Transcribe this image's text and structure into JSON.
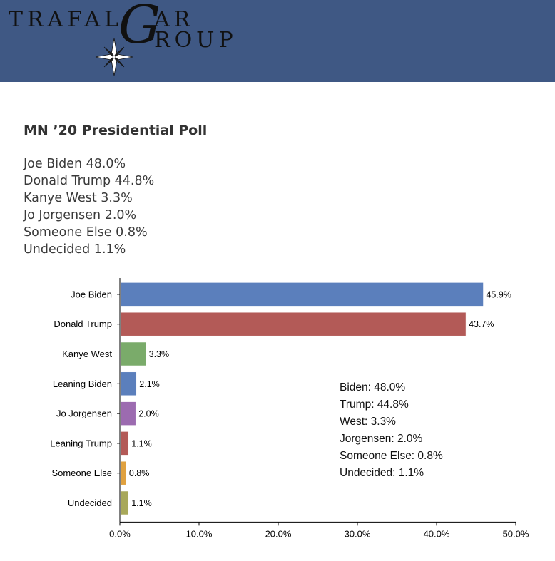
{
  "logo": {
    "text_left": "TRAFAL",
    "text_g": "G",
    "text_ar": "AR",
    "text_roup": "ROUP",
    "bg_color": "#3f5884",
    "icon": "compass-star-icon"
  },
  "poll": {
    "title": "MN ’20 Presidential Poll",
    "results": [
      "Joe Biden 48.0%",
      "Donald Trump 44.8%",
      "Kanye West 3.3%",
      "Jo Jorgensen 2.0%",
      "Someone Else 0.8%",
      "Undecided 1.1%"
    ]
  },
  "chart_data": {
    "type": "bar",
    "orientation": "horizontal",
    "categories": [
      "Joe Biden",
      "Donald Trump",
      "Kanye West",
      "Leaning Biden",
      "Jo Jorgensen",
      "Leaning Trump",
      "Someone Else",
      "Undecided"
    ],
    "values": [
      45.9,
      43.7,
      3.3,
      2.1,
      2.0,
      1.1,
      0.8,
      1.1
    ],
    "value_labels": [
      "45.9%",
      "43.7%",
      "3.3%",
      "2.1%",
      "2.0%",
      "1.1%",
      "0.8%",
      "1.1%"
    ],
    "colors": [
      "#5b7fbc",
      "#b35a57",
      "#7aab6a",
      "#5b7fbc",
      "#9c6bb0",
      "#b35a57",
      "#e0a13f",
      "#a8a85a"
    ],
    "xlim": [
      0,
      50
    ],
    "xticks": [
      0,
      10,
      20,
      30,
      40,
      50
    ],
    "xtick_labels": [
      "0.0%",
      "10.0%",
      "20.0%",
      "30.0%",
      "40.0%",
      "50.0%"
    ],
    "grid": false,
    "annotation": [
      "Biden: 48.0%",
      "Trump: 44.8%",
      "West: 3.3%",
      "Jorgensen: 2.0%",
      "Someone Else: 0.8%",
      "Undecided: 1.1%"
    ]
  }
}
